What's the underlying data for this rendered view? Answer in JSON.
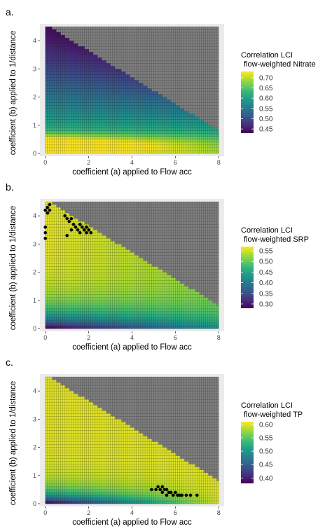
{
  "chart_data": [
    {
      "type": "heatmap",
      "panel_label": "a.",
      "xlabel": "coefficient (a) applied to Flow acc",
      "ylabel": "coefficient (b) applied to 1/distance",
      "xticks": [
        "0",
        "2",
        "4",
        "6",
        "8"
      ],
      "yticks": [
        "0",
        "1",
        "2",
        "3",
        "4"
      ],
      "xlim": [
        -0.25,
        8.25
      ],
      "ylim": [
        -0.1,
        4.6
      ],
      "legend_title": [
        "Correlation LCI",
        "flow-weighted Nitrate"
      ],
      "legend_ticks": [
        "0.70",
        "0.65",
        "0.60",
        "0.55",
        "0.50",
        "0.45"
      ],
      "color_range": [
        0.43,
        0.73
      ],
      "valid_region": "b <= 4.5 - 0.47 * a",
      "field": {
        "description_values": [
          {
            "a": 0,
            "b": 0.2,
            "value": 0.72
          },
          {
            "a": 2,
            "b": 0.3,
            "value": 0.71
          },
          {
            "a": 6,
            "b": 0.2,
            "value": 0.64
          },
          {
            "a": 0,
            "b": 1.5,
            "value": 0.55
          },
          {
            "a": 4,
            "b": 1.0,
            "value": 0.55
          },
          {
            "a": 0,
            "b": 3.0,
            "value": 0.47
          },
          {
            "a": 2,
            "b": 3.0,
            "value": 0.45
          },
          {
            "a": 0,
            "b": 4.4,
            "value": 0.44
          }
        ]
      },
      "highlights": []
    },
    {
      "type": "heatmap",
      "panel_label": "b.",
      "xlabel": "coefficient (a) applied to Flow acc",
      "ylabel": "coefficient (b) applied to 1/distance",
      "xticks": [
        "0",
        "2",
        "4",
        "6",
        "8"
      ],
      "yticks": [
        "0",
        "1",
        "2",
        "3",
        "4"
      ],
      "xlim": [
        -0.25,
        8.25
      ],
      "ylim": [
        -0.1,
        4.6
      ],
      "legend_title": [
        "Correlation LCI",
        "flow-weighted SRP"
      ],
      "legend_ticks": [
        "0.55",
        "0.50",
        "0.45",
        "0.40",
        "0.35",
        "0.30"
      ],
      "color_range": [
        0.28,
        0.57
      ],
      "valid_region": "b <= 4.5 - 0.47 * a",
      "field": {
        "description_values": [
          {
            "a": 0,
            "b": 4.0,
            "value": 0.56
          },
          {
            "a": 2,
            "b": 3.3,
            "value": 0.56
          },
          {
            "a": 0,
            "b": 2.0,
            "value": 0.54
          },
          {
            "a": 2,
            "b": 1.0,
            "value": 0.5
          },
          {
            "a": 0,
            "b": 0.1,
            "value": 0.29
          },
          {
            "a": 4,
            "b": 0.2,
            "value": 0.36
          },
          {
            "a": 8,
            "b": 0.2,
            "value": 0.44
          }
        ]
      },
      "highlights": [
        {
          "a": 0.0,
          "b": 3.2
        },
        {
          "a": 0.0,
          "b": 3.4
        },
        {
          "a": 0.0,
          "b": 3.6
        },
        {
          "a": 0.0,
          "b": 4.2
        },
        {
          "a": 0.1,
          "b": 4.3
        },
        {
          "a": 0.2,
          "b": 4.2
        },
        {
          "a": 0.1,
          "b": 4.1
        },
        {
          "a": 0.2,
          "b": 4.4
        },
        {
          "a": 0.9,
          "b": 4.0
        },
        {
          "a": 1.0,
          "b": 3.9
        },
        {
          "a": 1.1,
          "b": 3.8
        },
        {
          "a": 1.2,
          "b": 3.9
        },
        {
          "a": 1.3,
          "b": 3.7
        },
        {
          "a": 1.2,
          "b": 3.5
        },
        {
          "a": 1.4,
          "b": 3.6
        },
        {
          "a": 1.5,
          "b": 3.5
        },
        {
          "a": 1.6,
          "b": 3.7
        },
        {
          "a": 1.7,
          "b": 3.6
        },
        {
          "a": 1.8,
          "b": 3.5
        },
        {
          "a": 1.9,
          "b": 3.6
        },
        {
          "a": 2.0,
          "b": 3.5
        },
        {
          "a": 2.1,
          "b": 3.4
        },
        {
          "a": 1.9,
          "b": 3.4
        },
        {
          "a": 1.6,
          "b": 3.4
        },
        {
          "a": 1.0,
          "b": 3.3
        }
      ]
    },
    {
      "type": "heatmap",
      "panel_label": "c.",
      "xlabel": "coefficient (a) applied to Flow acc",
      "ylabel": "coefficient (b) applied to 1/distance",
      "xticks": [
        "0",
        "2",
        "4",
        "6",
        "8"
      ],
      "yticks": [
        "0",
        "1",
        "2",
        "3",
        "4"
      ],
      "xlim": [
        -0.25,
        8.25
      ],
      "ylim": [
        -0.1,
        4.6
      ],
      "legend_title": [
        "Correlation LCI",
        "flow-weighted TP"
      ],
      "legend_ticks": [
        "0.60",
        "0.55",
        "0.50",
        "0.45",
        "0.40"
      ],
      "color_range": [
        0.38,
        0.61
      ],
      "valid_region": "b <= 4.5 - 0.47 * a",
      "field": {
        "description_values": [
          {
            "a": 0,
            "b": 0.1,
            "value": 0.4
          },
          {
            "a": 0,
            "b": 1.0,
            "value": 0.55
          },
          {
            "a": 0,
            "b": 3.0,
            "value": 0.6
          },
          {
            "a": 4,
            "b": 1.0,
            "value": 0.6
          },
          {
            "a": 6,
            "b": 0.3,
            "value": 0.61
          },
          {
            "a": 2,
            "b": 0.2,
            "value": 0.5
          }
        ]
      },
      "highlights": [
        {
          "a": 4.9,
          "b": 0.5
        },
        {
          "a": 5.1,
          "b": 0.5
        },
        {
          "a": 5.2,
          "b": 0.6
        },
        {
          "a": 5.3,
          "b": 0.5
        },
        {
          "a": 5.4,
          "b": 0.4
        },
        {
          "a": 5.5,
          "b": 0.5
        },
        {
          "a": 5.6,
          "b": 0.3
        },
        {
          "a": 5.7,
          "b": 0.4
        },
        {
          "a": 5.8,
          "b": 0.4
        },
        {
          "a": 5.9,
          "b": 0.3
        },
        {
          "a": 6.0,
          "b": 0.4
        },
        {
          "a": 6.1,
          "b": 0.3
        },
        {
          "a": 6.2,
          "b": 0.3
        },
        {
          "a": 6.3,
          "b": 0.3
        },
        {
          "a": 6.5,
          "b": 0.3
        },
        {
          "a": 6.7,
          "b": 0.3
        },
        {
          "a": 7.0,
          "b": 0.3
        },
        {
          "a": 5.4,
          "b": 0.6
        },
        {
          "a": 5.6,
          "b": 0.5
        }
      ]
    }
  ]
}
